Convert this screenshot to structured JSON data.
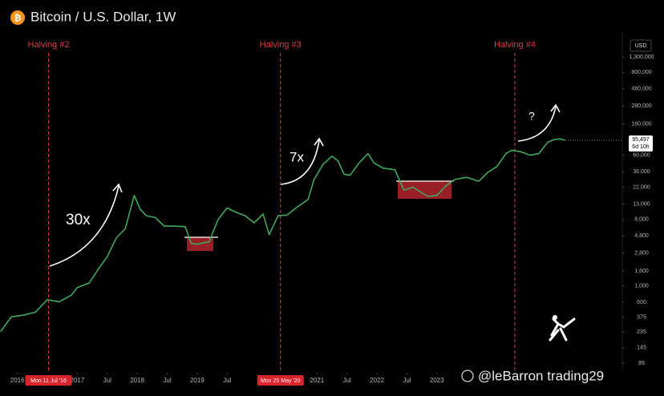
{
  "chart_data": {
    "type": "line",
    "title": "Bitcoin / U.S. Dollar, 1W",
    "currency": "USD",
    "log_scale": true,
    "xlim": [
      2015.71,
      2026.08
    ],
    "ylim": [
      66,
      2830000
    ],
    "xticks": [
      {
        "value": 2016,
        "label": "2016"
      },
      {
        "value": 2017,
        "label": "2017"
      },
      {
        "value": 2017.5,
        "label": "Jul"
      },
      {
        "value": 2018,
        "label": "2018"
      },
      {
        "value": 2018.5,
        "label": "Jul"
      },
      {
        "value": 2019,
        "label": "2019"
      },
      {
        "value": 2019.5,
        "label": "Jul"
      },
      {
        "value": 2021,
        "label": "2021"
      },
      {
        "value": 2021.5,
        "label": "Jul"
      },
      {
        "value": 2022,
        "label": "2022"
      },
      {
        "value": 2022.5,
        "label": "Jul"
      },
      {
        "value": 2023,
        "label": "2023"
      }
    ],
    "yticks": [
      {
        "value": 1300000,
        "label": "1,300,000"
      },
      {
        "value": 800000,
        "label": "800,000"
      },
      {
        "value": 480000,
        "label": "480,000"
      },
      {
        "value": 280000,
        "label": "280,000"
      },
      {
        "value": 160000,
        "label": "160,000"
      },
      {
        "value": 60000,
        "label": "60,000"
      },
      {
        "value": 36000,
        "label": "36,000"
      },
      {
        "value": 22000,
        "label": "22,000"
      },
      {
        "value": 13000,
        "label": "13,000"
      },
      {
        "value": 8000,
        "label": "8,000"
      },
      {
        "value": 4800,
        "label": "4,800"
      },
      {
        "value": 2800,
        "label": "2,800"
      },
      {
        "value": 1600,
        "label": "1,600"
      },
      {
        "value": 1000,
        "label": "1,000"
      },
      600,
      375,
      235,
      145,
      89
    ],
    "series": [
      {
        "name": "BTCUSD",
        "color": "#3ea85e",
        "x": [
          2015.72,
          2015.9,
          2016.1,
          2016.3,
          2016.5,
          2016.7,
          2016.9,
          2017.0,
          2017.2,
          2017.35,
          2017.5,
          2017.65,
          2017.8,
          2017.95,
          2018.05,
          2018.15,
          2018.3,
          2018.45,
          2018.6,
          2018.8,
          2018.9,
          2019.0,
          2019.2,
          2019.35,
          2019.5,
          2019.65,
          2019.8,
          2019.95,
          2020.1,
          2020.2,
          2020.35,
          2020.5,
          2020.65,
          2020.85,
          2020.95,
          2021.1,
          2021.25,
          2021.35,
          2021.45,
          2021.55,
          2021.7,
          2021.85,
          2021.95,
          2022.1,
          2022.3,
          2022.45,
          2022.6,
          2022.85,
          2023.0,
          2023.15,
          2023.3,
          2023.5,
          2023.7,
          2023.85,
          2024.0,
          2024.15,
          2024.25,
          2024.4,
          2024.55,
          2024.7,
          2024.85,
          2024.95,
          2025.05,
          2025.14
        ],
        "values": [
          240,
          380,
          400,
          440,
          650,
          610,
          750,
          950,
          1100,
          1700,
          2500,
          4500,
          6000,
          17000,
          11000,
          9000,
          8500,
          6500,
          6500,
          6400,
          3800,
          3700,
          4000,
          8000,
          11500,
          10000,
          9000,
          7200,
          9500,
          5000,
          9000,
          9200,
          11500,
          15000,
          28000,
          45000,
          58000,
          50000,
          33000,
          32000,
          47000,
          63000,
          47000,
          40000,
          38000,
          20000,
          22000,
          16500,
          17000,
          23000,
          28000,
          30000,
          26500,
          35000,
          42000,
          63000,
          70000,
          67000,
          60000,
          63000,
          90000,
          97000,
          100000,
          95497
        ]
      }
    ],
    "price_label": {
      "value": 95497,
      "label": "95,497"
    },
    "countdown": "6d 10h",
    "halvings": [
      {
        "x": 2016.52,
        "label": "Halving #2",
        "date_label": "Mon 11 Jul '16"
      },
      {
        "x": 2020.39,
        "label": "Halving #3",
        "date_label": "Mon 25 May '20"
      },
      {
        "x": 2024.3,
        "label": "Halving #4"
      }
    ],
    "annotations": [
      "30x",
      "7x",
      "?"
    ],
    "watermark": "@leBarron trading29"
  }
}
